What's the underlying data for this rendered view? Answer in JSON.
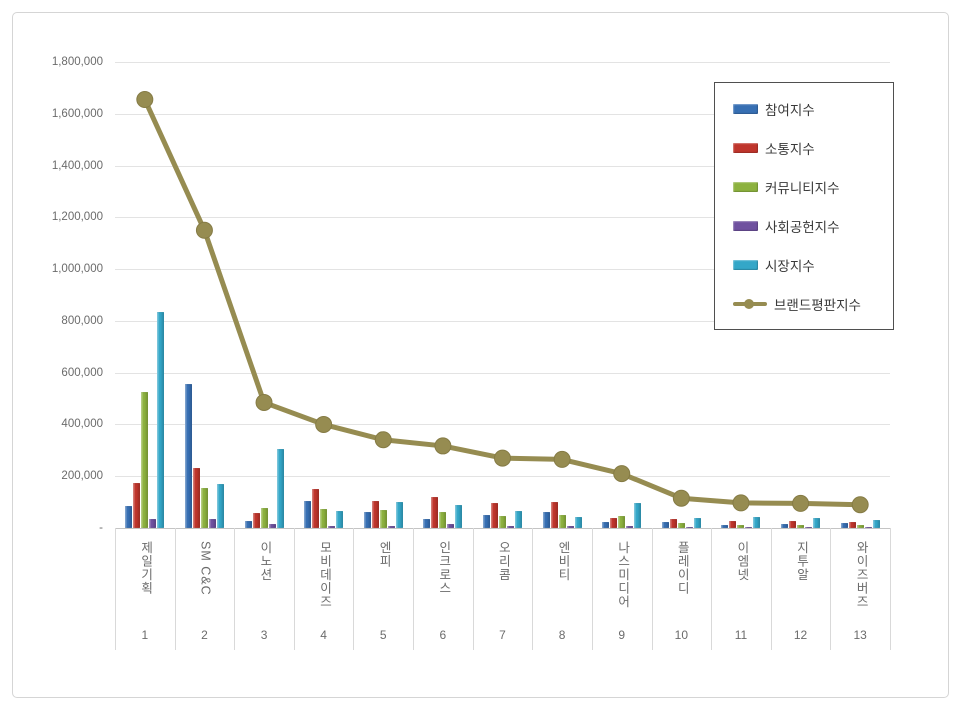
{
  "y_axis": {
    "labels": [
      "1,800,000",
      "1,600,000",
      "1,400,000",
      "1,200,000",
      "1,000,000",
      "800,000",
      "600,000",
      "400,000",
      "200,000",
      "-"
    ]
  },
  "legend": {
    "items": [
      {
        "key": "participation-index",
        "label": "참여지수",
        "color": "#376fb3",
        "type": "bar"
      },
      {
        "key": "communication-index",
        "label": "소통지수",
        "color": "#bf352c",
        "type": "bar"
      },
      {
        "key": "community-index",
        "label": "커뮤니티지수",
        "color": "#8db23f",
        "type": "bar"
      },
      {
        "key": "social-contribution-index",
        "label": "사회공헌지수",
        "color": "#6f519f",
        "type": "bar"
      },
      {
        "key": "market-index",
        "label": "시장지수",
        "color": "#34a7c8",
        "type": "bar"
      },
      {
        "key": "brand-reputation-index",
        "label": "브랜드평판지수",
        "color": "#968c51",
        "type": "line"
      }
    ]
  },
  "chart_data": {
    "type": "bar+line",
    "categories": [
      "제일기획",
      "SM C&C",
      "이노션",
      "모비데이즈",
      "엔피",
      "인크로스",
      "오리콤",
      "엔비티",
      "나스미디어",
      "플레이디",
      "이엠넷",
      "지투알",
      "와이즈버즈"
    ],
    "ranks": [
      "1",
      "2",
      "3",
      "4",
      "5",
      "6",
      "7",
      "8",
      "9",
      "10",
      "11",
      "12",
      "13"
    ],
    "series": [
      {
        "name": "참여지수",
        "key": "participation-index",
        "type": "bar",
        "color": "#376fb3",
        "values": [
          85000,
          555000,
          28000,
          105000,
          60000,
          34000,
          52000,
          62000,
          22000,
          22000,
          13000,
          16000,
          20000
        ]
      },
      {
        "name": "소통지수",
        "key": "communication-index",
        "type": "bar",
        "color": "#bf352c",
        "values": [
          175000,
          230000,
          58000,
          150000,
          105000,
          118000,
          98000,
          102000,
          38000,
          34000,
          28000,
          26000,
          24000
        ]
      },
      {
        "name": "커뮤니티지수",
        "key": "community-index",
        "type": "bar",
        "color": "#8db23f",
        "values": [
          525000,
          155000,
          78000,
          72000,
          70000,
          61000,
          45000,
          50000,
          48000,
          18000,
          10000,
          10000,
          12000
        ]
      },
      {
        "name": "사회공헌지수",
        "key": "social-contribution-index",
        "type": "bar",
        "color": "#6f519f",
        "values": [
          35000,
          35000,
          16000,
          6000,
          6000,
          14000,
          8000,
          8000,
          6000,
          4000,
          2000,
          3000,
          3000
        ]
      },
      {
        "name": "시장지수",
        "key": "market-index",
        "type": "bar",
        "color": "#34a7c8",
        "values": [
          835000,
          170000,
          305000,
          67000,
          100000,
          90000,
          67000,
          43000,
          95000,
          37000,
          44000,
          40000,
          31000
        ]
      },
      {
        "name": "브랜드평판지수",
        "key": "brand-reputation-index",
        "type": "line",
        "color": "#968c51",
        "values": [
          1655000,
          1150000,
          485000,
          400000,
          341000,
          317000,
          270000,
          265000,
          210000,
          115000,
          97000,
          95000,
          90000
        ]
      }
    ],
    "ylim": [
      0,
      1800000
    ],
    "ytick_interval": 200000,
    "grid": true,
    "legend_position": "upper right",
    "title": "",
    "xlabel": "",
    "ylabel": ""
  }
}
